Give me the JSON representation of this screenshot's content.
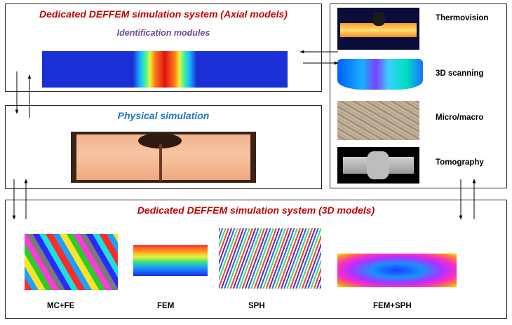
{
  "axial_box": {
    "title": "Dedicated DEFFEM simulation system (Axial models)",
    "subtitle": "Identification modules"
  },
  "physical_box": {
    "title": "Physical simulation"
  },
  "experimental_box": {
    "items": [
      {
        "label": "Thermovision"
      },
      {
        "label": "3D scanning"
      },
      {
        "label": "Micro/macro"
      },
      {
        "label": "Tomography"
      }
    ]
  },
  "models_box": {
    "title": "Dedicated DEFFEM simulation system (3D models)",
    "items": [
      {
        "label": "MC+FE"
      },
      {
        "label": "FEM"
      },
      {
        "label": "SPH"
      },
      {
        "label": "FEM+SPH"
      }
    ]
  },
  "colors": {
    "title_red": "#c00000",
    "subtitle_purple": "#6a4d8e",
    "title_blue": "#1f77c8"
  }
}
